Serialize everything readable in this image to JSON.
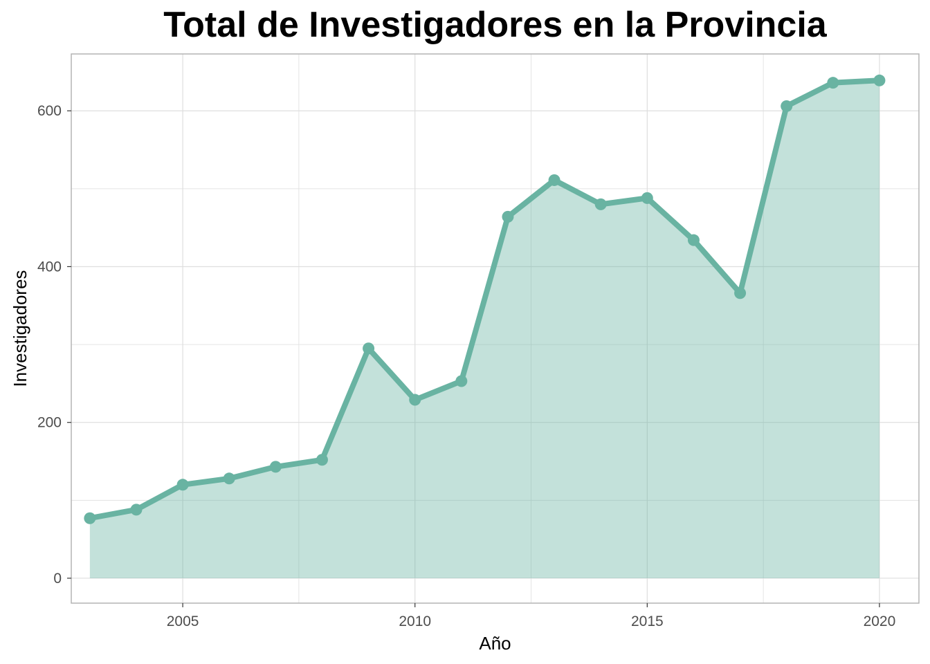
{
  "chart_data": {
    "type": "area",
    "title": "Total de Investigadores en la Provincia",
    "xlabel": "Año",
    "ylabel": "Investigadores",
    "x": [
      2003,
      2004,
      2005,
      2006,
      2007,
      2008,
      2009,
      2010,
      2011,
      2012,
      2013,
      2014,
      2015,
      2016,
      2017,
      2018,
      2019,
      2020
    ],
    "series": [
      {
        "values": [
          77,
          88,
          120,
          128,
          143,
          152,
          295,
          229,
          253,
          464,
          511,
          480,
          488,
          434,
          366,
          606,
          636,
          639
        ]
      }
    ],
    "xlim": [
      2002.6,
      2020.85
    ],
    "ylim": [
      -32,
      673
    ],
    "xticks": [
      2005,
      2010,
      2015,
      2020
    ],
    "yticks": [
      0,
      200,
      400,
      600
    ],
    "grid": true,
    "legend": "none",
    "colors": {
      "line": "#69b3a2",
      "area": "#69b3a2",
      "grid": "#dedede",
      "border": "#b3b3b3"
    }
  }
}
